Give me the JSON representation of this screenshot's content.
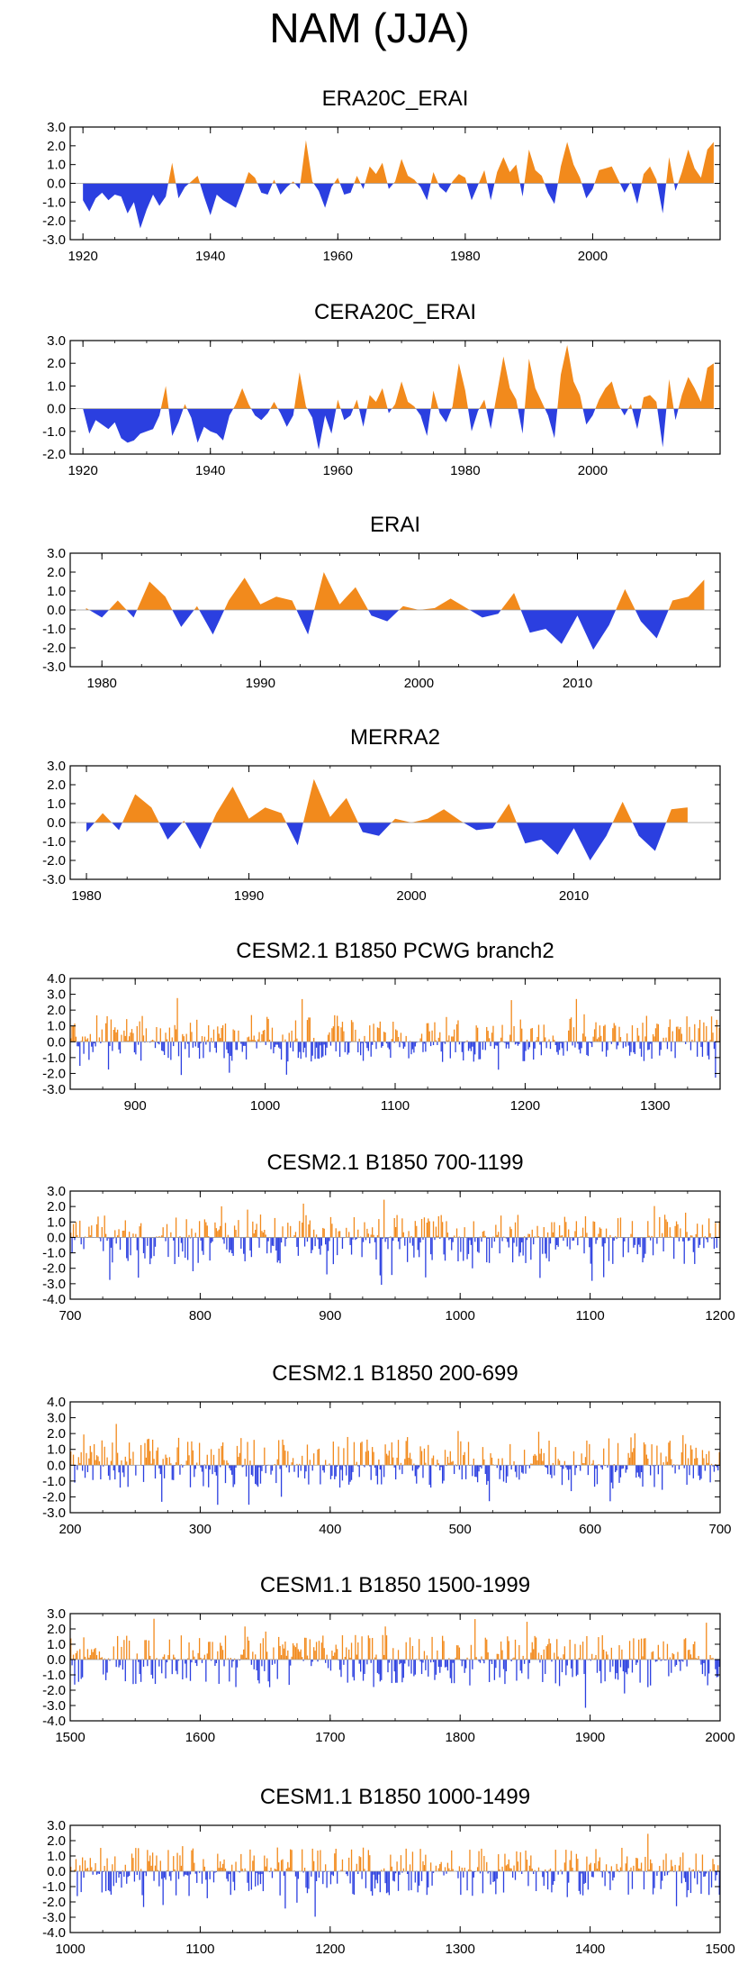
{
  "page": {
    "title": "NAM (JJA)"
  },
  "colors": {
    "positive": "#f28a1c",
    "negative": "#2b3fe0",
    "frame": "#000000"
  },
  "chart_data": [
    {
      "type": "area",
      "title": "ERA20C_ERAI",
      "xlim": [
        1918,
        2020
      ],
      "ylim": [
        -3,
        3
      ],
      "xticks": [
        "1920",
        "1940",
        "1960",
        "1980",
        "2000"
      ],
      "yticks": [
        "3.0",
        "2.0",
        "1.0",
        "0.0",
        "-1.0",
        "-2.0",
        "-3.0"
      ],
      "x_start": 1920,
      "values": [
        -0.9,
        -1.5,
        -0.8,
        -0.5,
        -0.9,
        -0.6,
        -0.7,
        -1.6,
        -1.0,
        -2.4,
        -1.4,
        -0.6,
        -1.2,
        -0.7,
        1.1,
        -0.8,
        -0.2,
        0.1,
        0.4,
        -0.7,
        -1.7,
        -0.6,
        -0.9,
        -1.1,
        -1.3,
        -0.4,
        0.6,
        0.3,
        -0.5,
        -0.6,
        0.2,
        -0.6,
        -0.2,
        0.1,
        -0.3,
        2.3,
        0.1,
        -0.4,
        -1.3,
        -0.2,
        0.3,
        -0.6,
        -0.5,
        0.4,
        -0.3,
        0.9,
        0.5,
        1.1,
        -0.3,
        0.1,
        1.3,
        0.4,
        0.2,
        -0.2,
        -0.9,
        0.6,
        -0.2,
        -0.5,
        0.1,
        0.5,
        0.3,
        -0.9,
        -0.1,
        0.7,
        -0.9,
        0.6,
        1.4,
        0.6,
        1.0,
        -0.7,
        1.8,
        0.7,
        0.4,
        -0.5,
        -1.1,
        0.9,
        2.2,
        1.0,
        0.3,
        -0.8,
        -0.3,
        0.7,
        0.8,
        0.9,
        0.2,
        -0.5,
        0.1,
        -1.1,
        0.5,
        0.9,
        0.2,
        -1.6,
        1.4,
        -0.4,
        0.6,
        1.8,
        0.8,
        0.3,
        1.8,
        2.2
      ]
    },
    {
      "type": "area",
      "title": "CERA20C_ERAI",
      "xlim": [
        1918,
        2020
      ],
      "ylim": [
        -2,
        3
      ],
      "xticks": [
        "1920",
        "1940",
        "1960",
        "1980",
        "2000"
      ],
      "yticks": [
        "3.0",
        "2.0",
        "1.0",
        "0.0",
        "-1.0",
        "-2.0"
      ],
      "x_start": 1920,
      "values": [
        0.0,
        -1.1,
        -0.5,
        -0.7,
        -0.9,
        -0.6,
        -1.3,
        -1.5,
        -1.4,
        -1.1,
        -1.0,
        -0.9,
        -0.3,
        1.0,
        -1.2,
        -0.6,
        0.2,
        -0.4,
        -1.5,
        -0.8,
        -1.0,
        -1.1,
        -1.4,
        -0.3,
        0.2,
        0.9,
        0.2,
        -0.3,
        -0.5,
        -0.2,
        0.3,
        -0.2,
        -0.8,
        -0.3,
        1.6,
        0.1,
        -0.4,
        -1.8,
        -0.3,
        -1.1,
        0.4,
        -0.5,
        -0.3,
        0.4,
        -0.8,
        0.6,
        0.3,
        0.9,
        -0.2,
        0.2,
        1.2,
        0.3,
        0.1,
        -0.3,
        -1.2,
        0.8,
        -0.2,
        -0.6,
        0.1,
        2.0,
        0.8,
        -1.0,
        -0.1,
        0.4,
        -0.9,
        0.7,
        2.3,
        0.9,
        0.4,
        -1.1,
        2.2,
        0.9,
        0.3,
        -0.3,
        -1.3,
        1.5,
        2.8,
        1.2,
        0.6,
        -0.7,
        -0.3,
        0.4,
        0.9,
        1.2,
        0.2,
        -0.3,
        0.2,
        -0.9,
        0.5,
        0.6,
        0.3,
        -1.7,
        1.3,
        -0.5,
        0.6,
        1.4,
        0.9,
        0.3,
        1.8,
        2.0
      ]
    },
    {
      "type": "area",
      "title": "ERAI",
      "xlim": [
        1978,
        2019
      ],
      "ylim": [
        -3,
        3
      ],
      "xticks": [
        "1980",
        "1990",
        "2000",
        "2010"
      ],
      "yticks": [
        "3.0",
        "2.0",
        "1.0",
        "0.0",
        "-1.0",
        "-2.0",
        "-3.0"
      ],
      "x_start": 1979,
      "values": [
        0.1,
        -0.4,
        0.5,
        -0.4,
        1.5,
        0.7,
        -0.9,
        0.2,
        -1.3,
        0.5,
        1.7,
        0.3,
        0.7,
        0.5,
        -1.3,
        2.0,
        0.3,
        1.2,
        -0.3,
        -0.6,
        0.2,
        0.0,
        0.1,
        0.6,
        0.1,
        -0.4,
        -0.2,
        0.9,
        -1.2,
        -1.0,
        -1.8,
        -0.3,
        -2.1,
        -0.8,
        1.1,
        -0.6,
        -1.5,
        0.5,
        0.7,
        1.6
      ]
    },
    {
      "type": "area",
      "title": "MERRA2",
      "xlim": [
        1979,
        2019
      ],
      "ylim": [
        -3,
        3
      ],
      "xticks": [
        "1980",
        "1990",
        "2000",
        "2010"
      ],
      "yticks": [
        "3.0",
        "2.0",
        "1.0",
        "0.0",
        "-1.0",
        "-2.0",
        "-3.0"
      ],
      "x_start": 1980,
      "values": [
        -0.5,
        0.5,
        -0.4,
        1.5,
        0.8,
        -0.9,
        0.1,
        -1.4,
        0.5,
        1.9,
        0.2,
        0.8,
        0.5,
        -1.2,
        2.3,
        0.3,
        1.3,
        -0.5,
        -0.7,
        0.2,
        0.0,
        0.2,
        0.7,
        0.1,
        -0.4,
        -0.3,
        1.0,
        -1.1,
        -0.9,
        -1.7,
        -0.3,
        -2.0,
        -0.7,
        1.1,
        -0.7,
        -1.5,
        0.7,
        0.8
      ]
    },
    {
      "type": "bar",
      "title": "CESM2.1 B1850 PCWG branch2",
      "xlim": [
        850,
        1350
      ],
      "ylim": [
        -3,
        4
      ],
      "xticks": [
        "900",
        "1000",
        "1100",
        "1200",
        "1300"
      ],
      "yticks": [
        "4.0",
        "3.0",
        "2.0",
        "1.0",
        "0.0",
        "-1.0",
        "-2.0",
        "-3.0"
      ],
      "n_years": 500,
      "seed": 11,
      "pos_scale": 2.8,
      "neg_scale": 2.3
    },
    {
      "type": "bar",
      "title": "CESM2.1 B1850 700-1199",
      "xlim": [
        700,
        1200
      ],
      "ylim": [
        -4,
        3
      ],
      "xticks": [
        "700",
        "800",
        "900",
        "1000",
        "1100",
        "1200"
      ],
      "yticks": [
        "3.0",
        "2.0",
        "1.0",
        "0.0",
        "-1.0",
        "-2.0",
        "-3.0",
        "-4.0"
      ],
      "n_years": 500,
      "seed": 23,
      "pos_scale": 2.5,
      "neg_scale": 3.2
    },
    {
      "type": "bar",
      "title": "CESM2.1 B1850 200-699",
      "xlim": [
        200,
        700
      ],
      "ylim": [
        -3,
        4
      ],
      "xticks": [
        "200",
        "300",
        "400",
        "500",
        "600",
        "700"
      ],
      "yticks": [
        "4.0",
        "3.0",
        "2.0",
        "1.0",
        "0.0",
        "-1.0",
        "-2.0",
        "-3.0"
      ],
      "n_years": 500,
      "seed": 37,
      "pos_scale": 3.0,
      "neg_scale": 2.6
    },
    {
      "type": "bar",
      "title": "CESM1.1 B1850 1500-1999",
      "xlim": [
        1500,
        2000
      ],
      "ylim": [
        -4,
        3
      ],
      "xticks": [
        "1500",
        "1600",
        "1700",
        "1800",
        "1900",
        "2000"
      ],
      "yticks": [
        "3.0",
        "2.0",
        "1.0",
        "0.0",
        "-1.0",
        "-2.0",
        "-3.0",
        "-4.0"
      ],
      "n_years": 500,
      "seed": 51,
      "pos_scale": 2.7,
      "neg_scale": 3.3
    },
    {
      "type": "bar",
      "title": "CESM1.1 B1850 1000-1499",
      "xlim": [
        1000,
        1500
      ],
      "ylim": [
        -4,
        3
      ],
      "xticks": [
        "1000",
        "1100",
        "1200",
        "1300",
        "1400",
        "1500"
      ],
      "yticks": [
        "3.0",
        "2.0",
        "1.0",
        "0.0",
        "-1.0",
        "-2.0",
        "-3.0",
        "-4.0"
      ],
      "n_years": 500,
      "seed": 67,
      "pos_scale": 2.6,
      "neg_scale": 3.1
    }
  ]
}
